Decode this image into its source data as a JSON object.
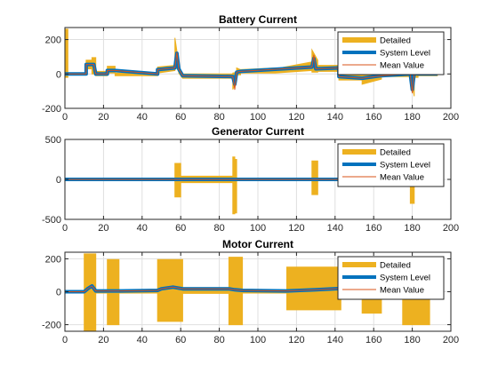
{
  "colors": {
    "detailed": "#EDB120",
    "system_level": "#0072BD",
    "mean_value": "#D95319",
    "axis": "#262626",
    "grid": "#DFDFDF",
    "background": "#FFFFFF"
  },
  "legend": {
    "placement": "top-right",
    "entries": [
      "Detailed",
      "System Level",
      "Mean Value"
    ]
  },
  "chart_data": [
    {
      "type": "line",
      "title": "Battery Current",
      "xlabel": "",
      "ylabel": "",
      "xlim": [
        0,
        200
      ],
      "ylim": [
        -200,
        270
      ],
      "xticks": [
        0,
        20,
        40,
        60,
        80,
        100,
        120,
        140,
        160,
        180,
        200
      ],
      "yticks": [
        -200,
        0,
        200
      ],
      "grid": true,
      "series": [
        {
          "name": "Detailed",
          "style": "band",
          "x": [
            0,
            1.5,
            1.5,
            11,
            11,
            14,
            14,
            16,
            16,
            22,
            22,
            26,
            26,
            48,
            48,
            57,
            57,
            59,
            59,
            61,
            61,
            87,
            87,
            89,
            89,
            91,
            91,
            109,
            109,
            128,
            128,
            131,
            131,
            142,
            142,
            154,
            154,
            164,
            164,
            179,
            179,
            181,
            181,
            183,
            183,
            193
          ],
          "upper": [
            260,
            260,
            5,
            5,
            80,
            80,
            95,
            95,
            15,
            15,
            45,
            45,
            5,
            5,
            40,
            50,
            210,
            60,
            40,
            5,
            0,
            0,
            5,
            10,
            35,
            25,
            25,
            35,
            30,
            70,
            140,
            80,
            50,
            50,
            15,
            15,
            10,
            10,
            20,
            20,
            30,
            30,
            20,
            20,
            10,
            10
          ],
          "lower": [
            -20,
            -20,
            -5,
            -5,
            30,
            30,
            0,
            0,
            -10,
            -10,
            5,
            5,
            -10,
            -10,
            5,
            20,
            60,
            10,
            5,
            -25,
            -25,
            -25,
            -90,
            -40,
            -5,
            -5,
            5,
            5,
            5,
            20,
            10,
            10,
            15,
            15,
            -35,
            -35,
            -60,
            -30,
            -15,
            -15,
            -10,
            -130,
            -20,
            -20,
            -10,
            -10
          ]
        },
        {
          "name": "System Level",
          "style": "line",
          "x": [
            0,
            11,
            11,
            15,
            16,
            22,
            22,
            26,
            48,
            48,
            57,
            58,
            59,
            61,
            87,
            88,
            89,
            91,
            128,
            129,
            130,
            142,
            142,
            154,
            164,
            179,
            180,
            181,
            183,
            193
          ],
          "values": [
            0,
            0,
            55,
            55,
            0,
            0,
            20,
            20,
            0,
            25,
            35,
            120,
            30,
            -10,
            -15,
            -60,
            10,
            15,
            40,
            90,
            30,
            35,
            -15,
            -25,
            -10,
            0,
            -90,
            5,
            0,
            0
          ]
        },
        {
          "name": "Mean Value",
          "style": "line",
          "x": [
            0,
            11,
            11,
            15,
            16,
            22,
            22,
            26,
            48,
            48,
            57,
            58,
            59,
            61,
            87,
            88,
            89,
            91,
            128,
            129,
            130,
            142,
            142,
            154,
            164,
            179,
            180,
            181,
            183,
            193
          ],
          "values": [
            0,
            0,
            55,
            55,
            0,
            0,
            20,
            20,
            0,
            25,
            35,
            125,
            30,
            -10,
            -15,
            -90,
            10,
            15,
            40,
            110,
            30,
            35,
            -15,
            -25,
            -10,
            0,
            -110,
            5,
            0,
            0
          ]
        }
      ]
    },
    {
      "type": "line",
      "title": "Generator Current",
      "xlabel": "",
      "ylabel": "",
      "xlim": [
        0,
        200
      ],
      "ylim": [
        -500,
        500
      ],
      "xticks": [
        0,
        20,
        40,
        60,
        80,
        100,
        120,
        140,
        160,
        180,
        200
      ],
      "yticks": [
        -500,
        0,
        500
      ],
      "grid": true,
      "series": [
        {
          "name": "Detailed",
          "style": "band",
          "x": [
            0,
            57,
            57,
            60,
            60,
            87,
            87,
            88,
            88,
            89,
            89,
            128,
            128,
            131,
            131,
            179,
            179,
            181,
            181,
            193
          ],
          "upper": [
            8,
            8,
            200,
            200,
            40,
            40,
            280,
            280,
            250,
            250,
            8,
            8,
            230,
            230,
            8,
            8,
            120,
            120,
            8,
            8
          ],
          "lower": [
            -8,
            -8,
            -220,
            -220,
            -40,
            -40,
            -430,
            -430,
            -420,
            -420,
            -8,
            -8,
            -190,
            -190,
            -8,
            -8,
            -300,
            -300,
            -8,
            -8
          ]
        },
        {
          "name": "System Level",
          "style": "line",
          "x": [
            0,
            193
          ],
          "values": [
            0,
            0
          ]
        },
        {
          "name": "Mean Value",
          "style": "line",
          "x": [
            0,
            193
          ],
          "values": [
            0,
            0
          ]
        }
      ]
    },
    {
      "type": "line",
      "title": "Motor Current",
      "xlabel": "",
      "ylabel": "",
      "xlim": [
        0,
        200
      ],
      "ylim": [
        -240,
        240
      ],
      "xticks": [
        0,
        20,
        40,
        60,
        80,
        100,
        120,
        140,
        160,
        180,
        200
      ],
      "yticks": [
        -200,
        0,
        200
      ],
      "grid": true,
      "series": [
        {
          "name": "Detailed",
          "style": "band",
          "x": [
            0,
            10,
            10,
            16,
            16,
            22,
            22,
            28,
            28,
            48,
            48,
            61,
            61,
            85,
            85,
            92,
            92,
            115,
            115,
            143,
            143,
            154,
            154,
            164,
            164,
            175,
            175,
            189,
            189,
            193
          ],
          "upper": [
            8,
            8,
            230,
            230,
            8,
            8,
            195,
            195,
            8,
            8,
            195,
            195,
            25,
            25,
            210,
            210,
            8,
            8,
            150,
            150,
            25,
            25,
            8,
            8,
            8,
            8,
            130,
            130,
            8,
            8
          ],
          "lower": [
            -8,
            -8,
            -240,
            -240,
            -8,
            -8,
            -200,
            -200,
            -8,
            -8,
            -180,
            -180,
            -10,
            -10,
            -200,
            -200,
            -8,
            -8,
            -110,
            -110,
            -10,
            -10,
            -130,
            -130,
            -8,
            -8,
            -200,
            -200,
            -8,
            -8
          ]
        },
        {
          "name": "System Level",
          "style": "line",
          "x": [
            0,
            10,
            12,
            14,
            16,
            22,
            28,
            48,
            50,
            56,
            61,
            85,
            88,
            92,
            115,
            130,
            143,
            154,
            164,
            175,
            180,
            189,
            193
          ],
          "values": [
            0,
            0,
            20,
            35,
            5,
            5,
            5,
            8,
            18,
            28,
            18,
            18,
            12,
            8,
            5,
            12,
            20,
            0,
            0,
            0,
            3,
            0,
            0
          ]
        },
        {
          "name": "Mean Value",
          "style": "line",
          "x": [
            0,
            10,
            12,
            14,
            16,
            22,
            28,
            48,
            50,
            56,
            61,
            85,
            88,
            92,
            115,
            130,
            143,
            154,
            164,
            175,
            180,
            189,
            193
          ],
          "values": [
            0,
            0,
            20,
            35,
            5,
            5,
            5,
            8,
            18,
            28,
            18,
            18,
            12,
            8,
            5,
            12,
            20,
            0,
            0,
            0,
            3,
            0,
            0
          ]
        }
      ]
    }
  ]
}
